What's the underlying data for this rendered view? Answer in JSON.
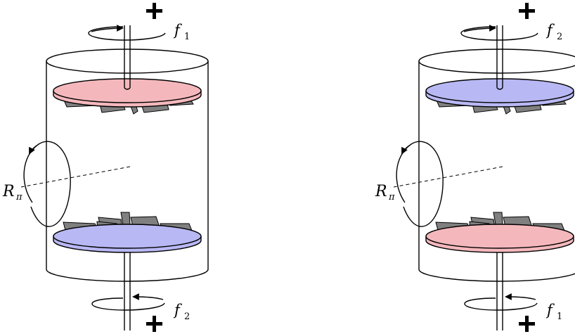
{
  "panels": [
    {
      "top_force": {
        "symbol": "f",
        "index": "1"
      },
      "bottom_force": {
        "symbol": "f",
        "index": "2"
      },
      "rotation": {
        "symbol": "R",
        "index": "π"
      },
      "top_disk_color": "#f4b8bc",
      "bottom_disk_color": "#b8b8f4"
    },
    {
      "top_force": {
        "symbol": "f",
        "index": "2"
      },
      "bottom_force": {
        "symbol": "f",
        "index": "1"
      },
      "rotation": {
        "symbol": "R",
        "index": "π"
      },
      "top_disk_color": "#b8b8f4",
      "bottom_disk_color": "#f4b8bc"
    }
  ],
  "colors": {
    "outline": "#000000",
    "blade": "#808080",
    "blade_dark": "#606060",
    "pink": "#f4b8bc",
    "blue": "#b8b8f4"
  }
}
